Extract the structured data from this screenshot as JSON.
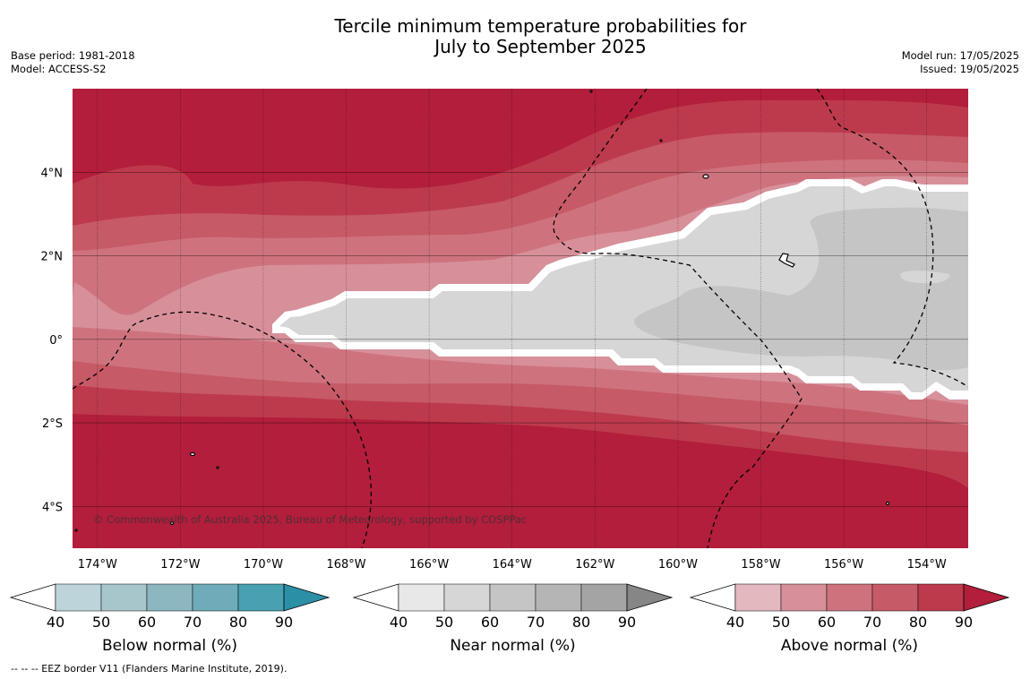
{
  "title": {
    "line1": "Tercile minimum temperature probabilities for",
    "line2": "July to September 2025"
  },
  "meta_left": {
    "base_period": "Base period: 1981-2018",
    "model": "Model: ACCESS-S2"
  },
  "meta_right": {
    "model_run": "Model run: 17/05/2025",
    "issued": "Issued: 19/05/2025"
  },
  "copyright": "© Commonwealth of Australia 2025, Bureau of Meteorology, supported by COSPPac",
  "map": {
    "lon_range": [
      -174.6,
      -153.0
    ],
    "lat_range": [
      -5.0,
      6.0
    ],
    "x_tick_labels": [
      "174°W",
      "172°W",
      "170°W",
      "168°W",
      "166°W",
      "164°W",
      "162°W",
      "160°W",
      "158°W",
      "156°W",
      "154°W"
    ],
    "y_tick_labels": [
      "4°N",
      "2°N",
      "0°",
      "2°S",
      "4°S"
    ],
    "dominant_category": "Above normal (warm reds)",
    "near_normal_region": "Central equatorial band east of 169°W"
  },
  "colors": {
    "above": [
      "#e3b8be",
      "#d7909a",
      "#ce737e",
      "#c65a66",
      "#bd3a4c",
      "#b21e3b"
    ],
    "near": [
      "#e8e8e8",
      "#d6d6d6",
      "#c5c5c5",
      "#b5b5b5",
      "#a4a4a4",
      "#868686"
    ],
    "below": [
      "#bcd4da",
      "#a7c6cb",
      "#8cb7c1",
      "#6eacb9",
      "#48a0b1",
      "#2b8fa6"
    ]
  },
  "colorbars": [
    {
      "name": "below",
      "label": "Below normal (%)",
      "ticks": [
        "40",
        "50",
        "60",
        "70",
        "80",
        "90"
      ]
    },
    {
      "name": "near",
      "label": "Near normal (%)",
      "ticks": [
        "40",
        "50",
        "60",
        "70",
        "80",
        "90"
      ]
    },
    {
      "name": "above",
      "label": "Above normal (%)",
      "ticks": [
        "40",
        "50",
        "60",
        "70",
        "80",
        "90"
      ]
    }
  ],
  "footnote": "-- -- -- EEZ border V11 (Flanders Marine Institute, 2019)."
}
